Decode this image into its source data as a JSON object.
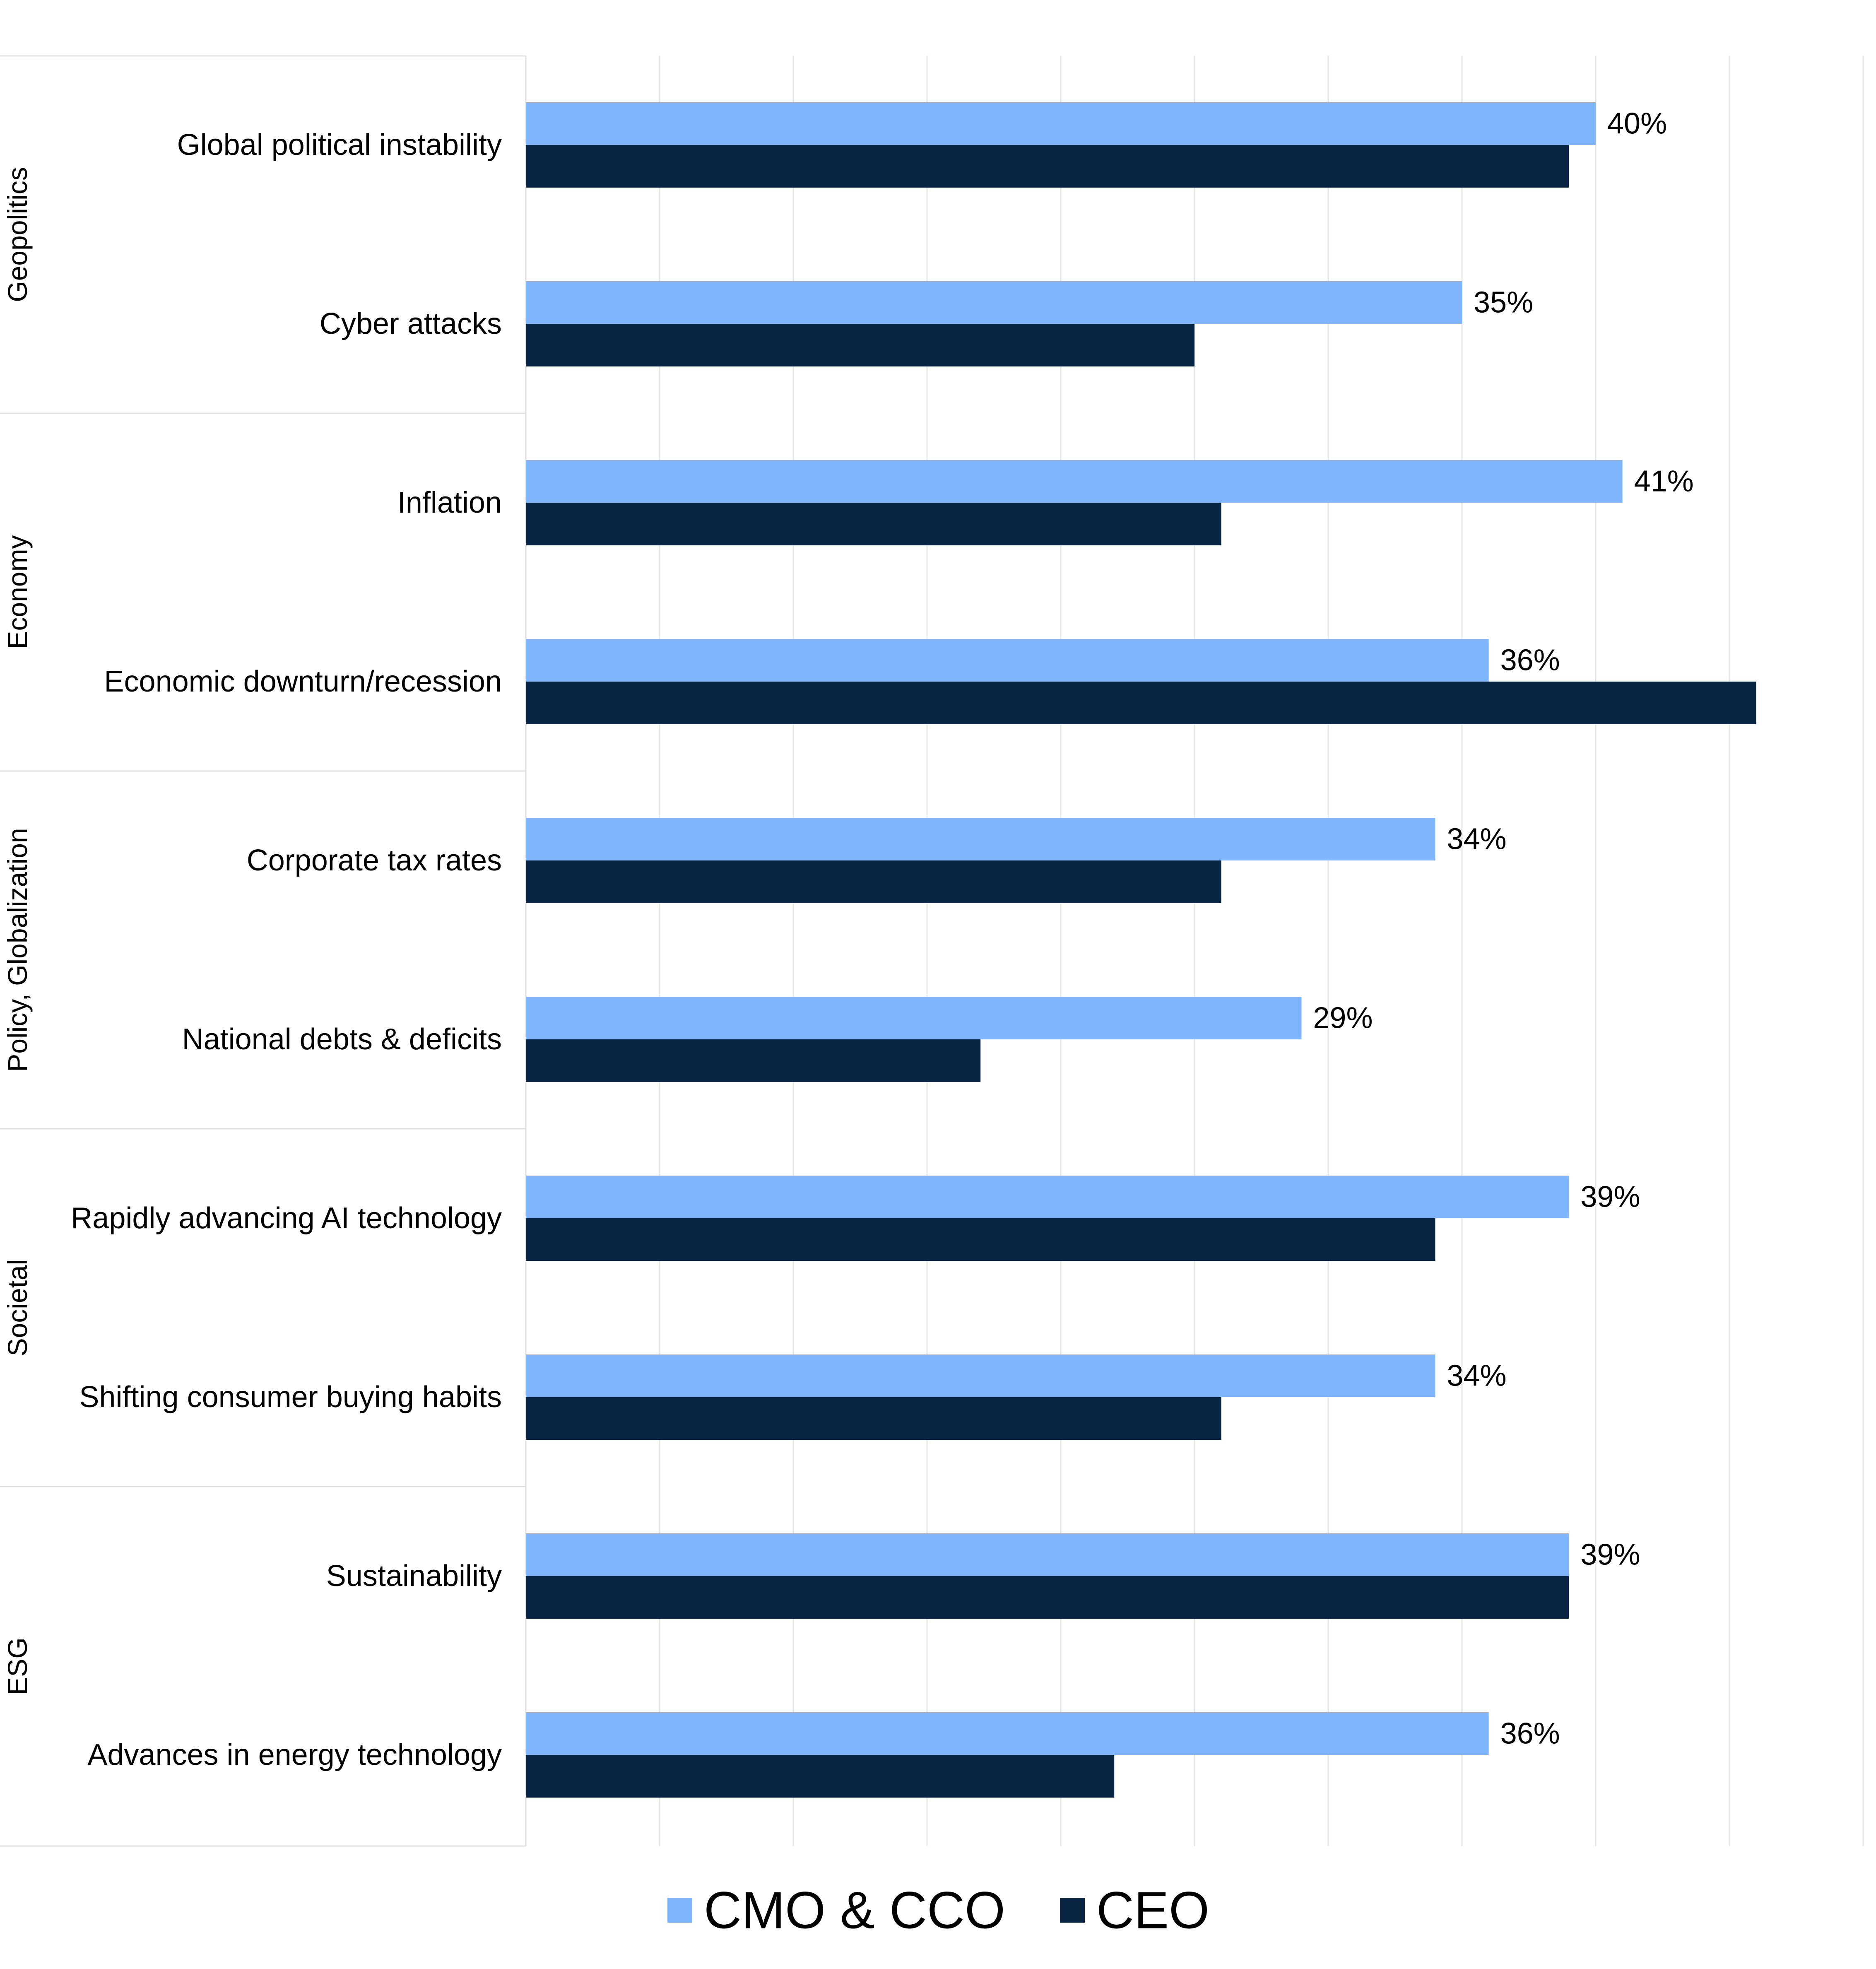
{
  "chart_data": {
    "type": "bar",
    "orientation": "horizontal",
    "groups": [
      {
        "name": "Geopolitics",
        "categories": [
          "Global political instability",
          "Cyber attacks"
        ]
      },
      {
        "name": "Economy",
        "categories": [
          "Inflation",
          "Economic downturn/recession"
        ]
      },
      {
        "name": "Policy, Globalization",
        "categories": [
          "Corporate tax rates",
          "National debts & deficits"
        ]
      },
      {
        "name": "Societal",
        "categories": [
          "Rapidly advancing AI technology",
          "Shifting consumer buying habits"
        ]
      },
      {
        "name": "ESG",
        "categories": [
          "Sustainability",
          "Advances in energy technology"
        ]
      }
    ],
    "categories": [
      "Global political instability",
      "Cyber attacks",
      "Inflation",
      "Economic downturn/recession",
      "Corporate tax rates",
      "National debts & deficits",
      "Rapidly advancing AI technology",
      "Shifting consumer buying habits",
      "Sustainability",
      "Advances in energy technology"
    ],
    "series": [
      {
        "name": "CMO & CCO",
        "color": "#7fb5fd",
        "values": [
          40,
          35,
          41,
          36,
          34,
          29,
          39,
          34,
          39,
          36
        ],
        "labels": [
          "40%",
          "35%",
          "41%",
          "36%",
          "34%",
          "29%",
          "39%",
          "34%",
          "39%",
          "36%"
        ]
      },
      {
        "name": "CEO",
        "color": "#0a2444",
        "values": [
          39,
          25,
          26,
          46,
          26,
          17,
          34,
          26,
          39,
          22
        ]
      }
    ],
    "xlim": [
      0,
      50
    ],
    "x_gridlines": true,
    "x_tick_labels": false,
    "legend": {
      "position": "bottom-center"
    }
  }
}
